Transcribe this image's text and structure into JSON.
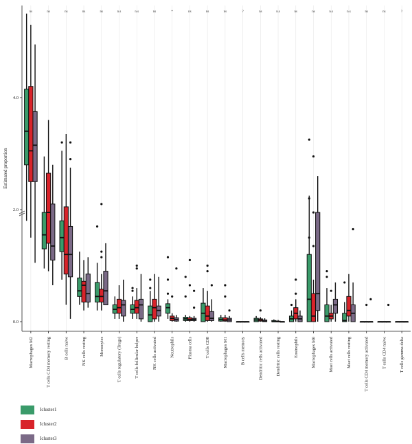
{
  "chart_data": {
    "type": "boxplot",
    "ylabel": "Estimated proportion",
    "ytick_labels": [
      "0.0",
      "2.0",
      "4.0"
    ],
    "y_axis_break": true,
    "grid": "vertical",
    "legend_placement": "bottom-left",
    "categories": [
      "Macrophages M2",
      "T cells CD4 memory resting",
      "B cells naive",
      "NK cells resting",
      "Monocytes",
      "T cells regulatory (Tregs)",
      "T cells follicular helper",
      "NK cells activated",
      "Neutrophils",
      "Plasma cells",
      "T cells CD8",
      "Macrophages M1",
      "B cells memory",
      "Dendritic cells activated",
      "Dendritic cells resting",
      "Eosinophils",
      "Macrophages M0",
      "Mast cells activated",
      "Mast cells resting",
      "T cells CD4 memory activated",
      "T cells CD4 naive",
      "T cells gamma delta"
    ],
    "significance": [
      "ns",
      "ns",
      "ns",
      "ns",
      "ns",
      "n.s",
      "n.s",
      "ns",
      "*",
      "ns",
      "ns",
      "ns",
      "?",
      "ns",
      "n.s",
      "ns",
      "ns",
      "n.s",
      "n.s",
      "ns",
      "ns",
      "?"
    ],
    "series": [
      {
        "name": "Icluster1",
        "color": "#3a9b6a",
        "boxes": [
          [
            1.8,
            2.8,
            3.4,
            4.15,
            5.5
          ],
          [
            0.95,
            1.3,
            1.55,
            1.95,
            2.95
          ],
          [
            0.75,
            1.25,
            1.5,
            1.8,
            3.05
          ],
          [
            0.3,
            0.45,
            0.55,
            0.78,
            1.25
          ],
          [
            0.2,
            0.35,
            0.45,
            0.7,
            1.05
          ],
          [
            0.05,
            0.15,
            0.22,
            0.3,
            0.45
          ],
          [
            0.05,
            0.15,
            0.22,
            0.3,
            0.45
          ],
          [
            0.0,
            0.0,
            0.12,
            0.28,
            0.55
          ],
          [
            0.05,
            0.15,
            0.25,
            0.32,
            0.4
          ],
          [
            0.0,
            0.02,
            0.05,
            0.08,
            0.12
          ],
          [
            0.0,
            0.0,
            0.15,
            0.33,
            0.6
          ],
          [
            0.0,
            0.01,
            0.04,
            0.07,
            0.12
          ],
          [
            0.0,
            0.0,
            0.0,
            0.0,
            0.0
          ],
          [
            0.0,
            0.0,
            0.03,
            0.06,
            0.1
          ],
          [
            0.0,
            0.0,
            0.0,
            0.02,
            0.04
          ],
          [
            0.0,
            0.0,
            0.05,
            0.1,
            0.2
          ],
          [
            0.0,
            0.0,
            0.4,
            1.2,
            2.25
          ],
          [
            0.0,
            0.0,
            0.1,
            0.3,
            0.6
          ],
          [
            0.0,
            0.0,
            0.02,
            0.15,
            0.35
          ],
          [
            0.0,
            0.0,
            0.0,
            0.0,
            0.0
          ],
          [
            0.0,
            0.0,
            0.0,
            0.0,
            0.0
          ],
          [
            0.0,
            0.0,
            0.0,
            0.0,
            0.0
          ]
        ],
        "outliers": [
          [],
          [],
          [
            3.2
          ],
          [],
          [
            1.7
          ],
          [],
          [
            0.6,
            0.55
          ],
          [
            0.75,
            0.6
          ],
          [
            1.15,
            0.75,
            0.5
          ],
          [
            0.8,
            0.45
          ],
          [],
          [],
          [],
          [],
          [],
          [
            0.3
          ],
          [
            3.25,
            2.2,
            1.5
          ],
          [
            0.9,
            0.8
          ],
          [
            0.7
          ],
          [],
          [],
          []
        ]
      },
      {
        "name": "Icluster2",
        "color": "#d8232a",
        "boxes": [
          [
            1.5,
            2.5,
            3.05,
            4.2,
            5.3
          ],
          [
            0.9,
            1.4,
            1.95,
            2.65,
            3.6
          ],
          [
            0.3,
            0.85,
            1.2,
            2.05,
            3.35
          ],
          [
            0.2,
            0.35,
            0.65,
            0.72,
            1.1
          ],
          [
            0.2,
            0.35,
            0.45,
            0.58,
            0.85
          ],
          [
            0.05,
            0.15,
            0.25,
            0.4,
            0.65
          ],
          [
            0.05,
            0.15,
            0.25,
            0.38,
            0.6
          ],
          [
            0.0,
            0.05,
            0.25,
            0.4,
            0.85
          ],
          [
            0.0,
            0.02,
            0.06,
            0.1,
            0.15
          ],
          [
            0.0,
            0.02,
            0.04,
            0.07,
            0.1
          ],
          [
            0.0,
            0.02,
            0.1,
            0.28,
            0.55
          ],
          [
            0.0,
            0.01,
            0.03,
            0.07,
            0.12
          ],
          [
            0.0,
            0.0,
            0.0,
            0.0,
            0.0
          ],
          [
            0.0,
            0.01,
            0.03,
            0.05,
            0.08
          ],
          [
            0.0,
            0.0,
            0.0,
            0.01,
            0.03
          ],
          [
            0.0,
            0.05,
            0.15,
            0.25,
            0.4
          ],
          [
            0.0,
            0.0,
            0.1,
            0.5,
            0.75
          ],
          [
            0.0,
            0.05,
            0.1,
            0.15,
            0.3
          ],
          [
            0.0,
            0.1,
            0.2,
            0.45,
            0.85
          ],
          [
            0.0,
            0.0,
            0.0,
            0.0,
            0.0
          ],
          [
            0.0,
            0.0,
            0.0,
            0.0,
            0.0
          ],
          [
            0.0,
            0.0,
            0.0,
            0.0,
            0.0
          ]
        ],
        "outliers": [
          [],
          [],
          [],
          [],
          [
            2.1,
            1.25,
            1.15
          ],
          [],
          [
            1.0,
            0.95
          ],
          [],
          [
            0.45
          ],
          [
            1.1,
            0.65
          ],
          [
            1.0,
            0.9
          ],
          [
            0.65,
            0.45
          ],
          [],
          [
            0.2
          ],
          [],
          [
            0.75,
            0.5
          ],
          [
            2.95,
            1.95,
            1.35
          ],
          [
            0.55
          ],
          [],
          [
            0.3
          ],
          [],
          []
        ]
      },
      {
        "name": "Icluster3",
        "color": "#7b6a87",
        "boxes": [
          [
            1.05,
            2.5,
            3.15,
            3.75,
            4.95
          ],
          [
            0.65,
            1.1,
            1.35,
            2.1,
            2.8
          ],
          [
            0.05,
            0.8,
            1.2,
            1.7,
            2.75
          ],
          [
            0.25,
            0.35,
            0.5,
            0.85,
            1.15
          ],
          [
            0.3,
            0.3,
            0.55,
            0.9,
            1.4
          ],
          [
            0.0,
            0.1,
            0.3,
            0.38,
            0.75
          ],
          [
            0.0,
            0.05,
            0.3,
            0.4,
            0.85
          ],
          [
            0.0,
            0.1,
            0.2,
            0.28,
            0.8
          ],
          [
            0.0,
            0.01,
            0.04,
            0.07,
            0.12
          ],
          [
            0.0,
            0.02,
            0.04,
            0.06,
            0.1
          ],
          [
            0.0,
            0.02,
            0.06,
            0.18,
            0.4
          ],
          [
            0.0,
            0.0,
            0.03,
            0.06,
            0.1
          ],
          [
            0.0,
            0.0,
            0.0,
            0.0,
            0.0
          ],
          [
            0.0,
            0.0,
            0.01,
            0.03,
            0.06
          ],
          [
            0.0,
            0.0,
            0.0,
            0.0,
            0.0
          ],
          [
            0.0,
            0.0,
            0.05,
            0.1,
            0.2
          ],
          [
            0.0,
            0.2,
            0.5,
            1.95,
            2.6
          ],
          [
            0.0,
            0.15,
            0.3,
            0.4,
            0.7
          ],
          [
            0.0,
            0.0,
            0.15,
            0.3,
            0.7
          ],
          [
            0.0,
            0.0,
            0.0,
            0.0,
            0.0
          ],
          [
            0.0,
            0.0,
            0.0,
            0.0,
            0.0
          ],
          [
            0.0,
            0.0,
            0.0,
            0.0,
            0.0
          ]
        ],
        "outliers": [
          [],
          [],
          [
            3.2,
            2.9
          ],
          [],
          [],
          [],
          [],
          [],
          [
            0.95
          ],
          [
            0.55,
            0.25
          ],
          [
            0.65
          ],
          [
            0.2
          ],
          [],
          [],
          [],
          [],
          [],
          [],
          [
            1.65
          ],
          [
            0.4
          ],
          [
            0.3
          ],
          []
        ]
      }
    ]
  }
}
